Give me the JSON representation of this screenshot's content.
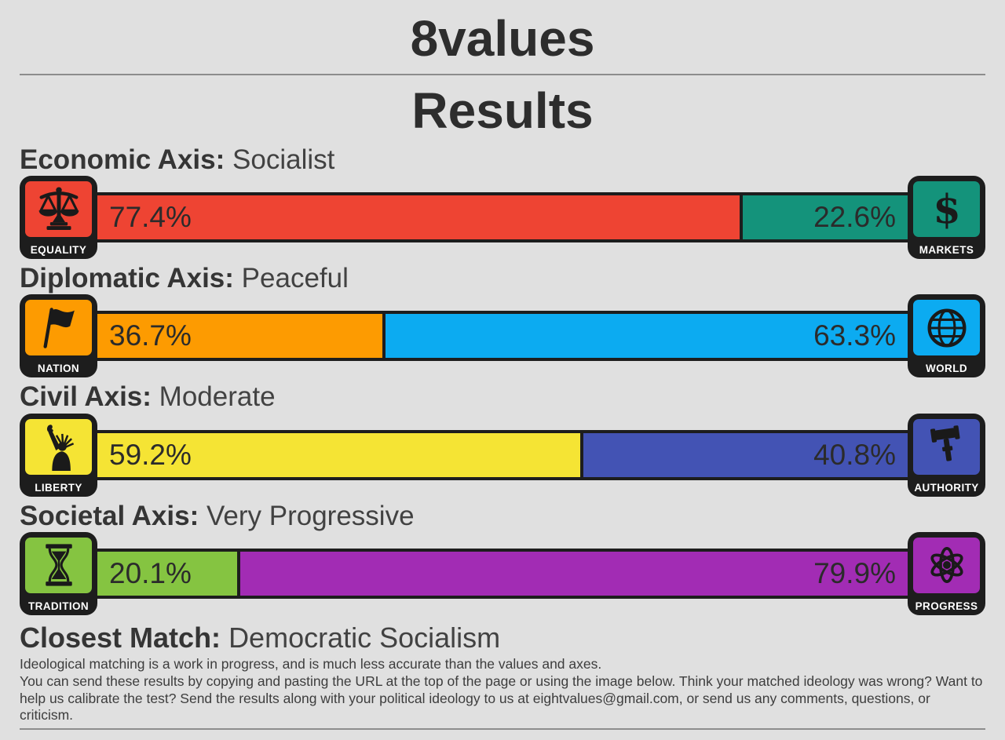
{
  "page": {
    "title": "8values",
    "subtitle": "Results",
    "background": "#e0e0e0"
  },
  "axes": [
    {
      "heading_label": "Economic Axis:",
      "result": "Socialist",
      "left": {
        "label": "EQUALITY",
        "percent": "77.4%",
        "value": 77.4,
        "color": "#ee4433",
        "icon": "scales-icon"
      },
      "right": {
        "label": "MARKETS",
        "percent": "22.6%",
        "value": 22.6,
        "color": "#14937b",
        "icon": "dollar-icon"
      }
    },
    {
      "heading_label": "Diplomatic Axis:",
      "result": "Peaceful",
      "left": {
        "label": "NATION",
        "percent": "36.7%",
        "value": 36.7,
        "color": "#fd9b01",
        "icon": "flag-icon"
      },
      "right": {
        "label": "WORLD",
        "percent": "63.3%",
        "value": 63.3,
        "color": "#0cabf1",
        "icon": "globe-icon"
      }
    },
    {
      "heading_label": "Civil Axis:",
      "result": "Moderate",
      "left": {
        "label": "LIBERTY",
        "percent": "59.2%",
        "value": 59.2,
        "color": "#f5e434",
        "icon": "liberty-icon"
      },
      "right": {
        "label": "AUTHORITY",
        "percent": "40.8%",
        "value": 40.8,
        "color": "#4353b4",
        "icon": "gavel-icon"
      }
    },
    {
      "heading_label": "Societal Axis:",
      "result": "Very Progressive",
      "left": {
        "label": "TRADITION",
        "percent": "20.1%",
        "value": 20.1,
        "color": "#85c441",
        "icon": "hourglass-icon"
      },
      "right": {
        "label": "PROGRESS",
        "percent": "79.9%",
        "value": 79.9,
        "color": "#a22cb4",
        "icon": "atom-icon"
      }
    }
  ],
  "closest_match": {
    "label": "Closest Match:",
    "value": "Democratic Socialism"
  },
  "footer": {
    "line1": "Ideological matching is a work in progress, and is much less accurate than the values and axes.",
    "line2": "You can send these results by copying and pasting the URL at the top of the page or using the image below. Think your matched ideology was wrong? Want to help us calibrate the test? Send the results along with your political ideology to us at eightvalues@gmail.com, or send us any comments, questions, or criticism."
  },
  "chart_data": {
    "type": "bar",
    "title": "8values Results",
    "categories": [
      "Economic",
      "Diplomatic",
      "Civil",
      "Societal"
    ],
    "series": [
      {
        "name": "Left pole (Equality / Nation / Liberty / Tradition)",
        "values": [
          77.4,
          36.7,
          59.2,
          20.1
        ]
      },
      {
        "name": "Right pole (Markets / World / Authority / Progress)",
        "values": [
          22.6,
          63.3,
          40.8,
          79.9
        ]
      }
    ],
    "axis_results": {
      "Economic": "Socialist",
      "Diplomatic": "Peaceful",
      "Civil": "Moderate",
      "Societal": "Very Progressive"
    },
    "closest_match": "Democratic Socialism",
    "xlim": [
      0,
      100
    ],
    "unit": "%",
    "orientation": "horizontal-stacked"
  }
}
